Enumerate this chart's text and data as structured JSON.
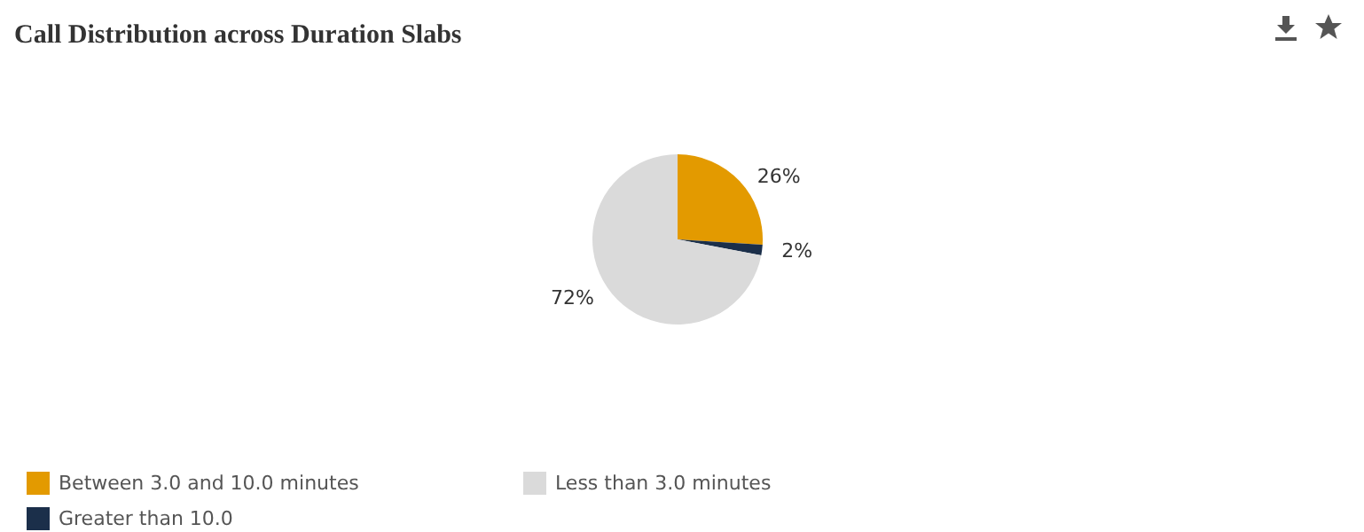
{
  "chart_data": {
    "type": "pie",
    "title": "Call Distribution across Duration Slabs",
    "categories": [
      "Between 3.0 and 10.0 minutes",
      "Greater than 10.0",
      "Less than 3.0 minutes"
    ],
    "values": [
      26,
      2,
      72
    ],
    "value_labels": [
      "26%",
      "2%",
      "72%"
    ],
    "colors": [
      "#e39a00",
      "#1b2f4a",
      "#dadada"
    ],
    "legend": "bottom left"
  }
}
